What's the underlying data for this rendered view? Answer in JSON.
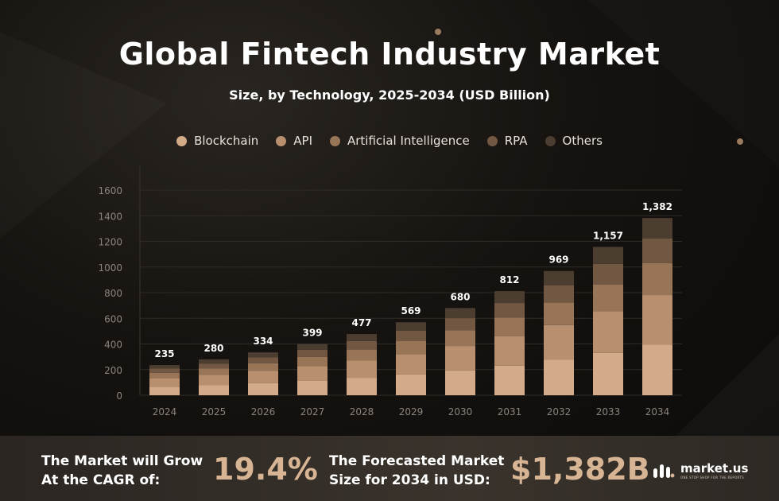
{
  "chart_data": {
    "type": "bar",
    "stacked": true,
    "title": "Global Fintech Industry Market",
    "subtitle": "Size, by Technology, 2025-2034 (USD Billion)",
    "categories": [
      "2024",
      "2025",
      "2026",
      "2027",
      "2028",
      "2029",
      "2030",
      "2031",
      "2032",
      "2033",
      "2034"
    ],
    "totals": [
      235,
      280,
      334,
      399,
      477,
      569,
      680,
      812,
      969,
      1157,
      1382
    ],
    "total_labels": [
      "235",
      "280",
      "334",
      "399",
      "477",
      "569",
      "680",
      "812",
      "969",
      "1,157",
      "1,382"
    ],
    "series": [
      {
        "name": "Blockchain",
        "color": "#d3ab88",
        "values": [
          67,
          80,
          95,
          114,
          136,
          162,
          194,
          231,
          276,
          330,
          394
        ]
      },
      {
        "name": "API",
        "color": "#b8906f",
        "values": [
          66,
          78,
          94,
          112,
          134,
          159,
          190,
          228,
          271,
          324,
          387
        ]
      },
      {
        "name": "Artificial Intelligence",
        "color": "#997558",
        "values": [
          42,
          50,
          60,
          72,
          86,
          103,
          122,
          146,
          175,
          208,
          249
        ]
      },
      {
        "name": "RPA",
        "color": "#725843",
        "values": [
          33,
          39,
          47,
          56,
          67,
          80,
          95,
          114,
          136,
          162,
          193
        ]
      },
      {
        "name": "Others",
        "color": "#4c3d31",
        "values": [
          27,
          33,
          38,
          45,
          54,
          65,
          79,
          93,
          111,
          133,
          159
        ]
      }
    ],
    "ylim": [
      0,
      1600
    ],
    "yticks": [
      "0",
      "200",
      "400",
      "600",
      "800",
      "1000",
      "1200",
      "1400",
      "1600"
    ],
    "grid": true,
    "legend_position": "top-center"
  },
  "footer": {
    "cagr_line1": "The Market will Grow",
    "cagr_line2": "At the CAGR of:",
    "cagr_value": "19.4%",
    "forecast_line1": "The Forecasted Market",
    "forecast_line2": "Size for 2034 in USD:",
    "forecast_value": "$1,382B"
  },
  "brand": {
    "name": "market.us",
    "tagline": "ONE STOP SHOP FOR THE REPORTS",
    "icon": "market-us-logo-icon"
  },
  "colors": {
    "accent": "#d6b494",
    "background": "#15120f"
  }
}
